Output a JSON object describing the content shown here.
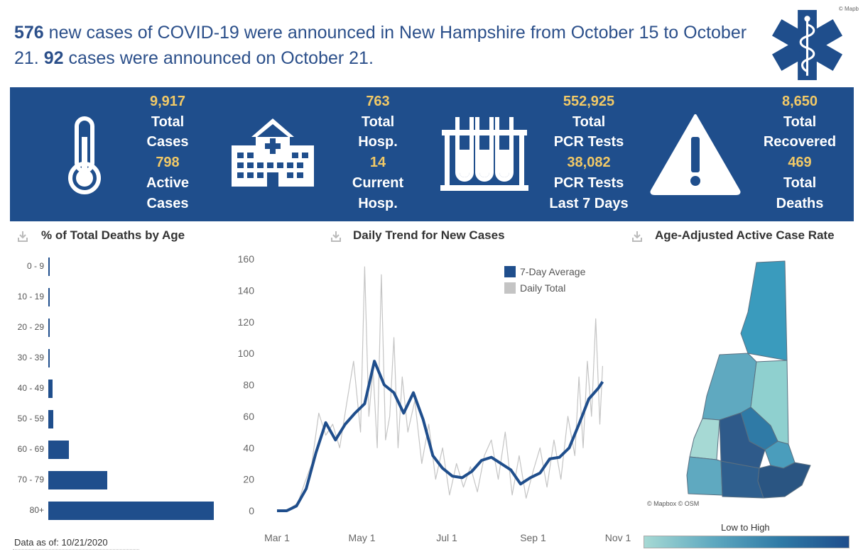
{
  "attribution": "© Mapb",
  "headline": {
    "new_cases": "576",
    "part1": " new cases of COVID-19 were announced in New Hampshire from October 15 to October 21. ",
    "day_cases": "92",
    "part2": " cases were announced on October 21."
  },
  "stats": {
    "cases": {
      "total_value": "9,917",
      "total_label_1": "Total",
      "total_label_2": "Cases",
      "active_value": "798",
      "active_label_1": "Active",
      "active_label_2": "Cases"
    },
    "hosp": {
      "total_value": "763",
      "total_label_1": "Total",
      "total_label_2": "Hosp.",
      "current_value": "14",
      "current_label_1": "Current",
      "current_label_2": "Hosp."
    },
    "tests": {
      "total_value": "552,925",
      "total_label_1": "Total",
      "total_label_2": "PCR Tests",
      "week_value": "38,082",
      "week_label_1": "PCR Tests",
      "week_label_2": "Last 7 Days"
    },
    "outcomes": {
      "recovered_value": "8,650",
      "recovered_label_1": "Total",
      "recovered_label_2": "Recovered",
      "deaths_value": "469",
      "deaths_label_1": "Total",
      "deaths_label_2": "Deaths"
    }
  },
  "icons": {
    "banner": [
      "thermometer-icon",
      "hospital-icon",
      "test-tubes-icon",
      "warning-icon"
    ],
    "logo": "star-of-life-icon",
    "download": "download-icon"
  },
  "colors": {
    "banner": "#1f4e8c",
    "stat_value": "#f1c967",
    "avg_line": "#1f4e8c",
    "daily_line": "#c4c4c4"
  },
  "panels": {
    "deaths_by_age": {
      "title": "% of Total Deaths by Age",
      "bars": [
        {
          "label": "0 - 9",
          "value": 0.2
        },
        {
          "label": "10 - 19",
          "value": 0.2
        },
        {
          "label": "20 - 29",
          "value": 0.2
        },
        {
          "label": "30 - 39",
          "value": 0.2
        },
        {
          "label": "40 - 49",
          "value": 1.1
        },
        {
          "label": "50 - 59",
          "value": 1.3
        },
        {
          "label": "60 - 69",
          "value": 5.6
        },
        {
          "label": "70 - 79",
          "value": 16.0
        },
        {
          "label": "80+",
          "value": 45.0
        }
      ]
    },
    "daily_trend": {
      "title": "Daily Trend for New Cases"
    },
    "map": {
      "title": "Age-Adjusted Active Case Rate",
      "credit": "© Mapbox © OSM",
      "legend_label": "Low to High"
    }
  },
  "footer": {
    "data_as_of": "Data as of: 10/21/2020"
  },
  "chart_data": {
    "type": "line",
    "title": "Daily Trend for New Cases",
    "xlabel": "",
    "ylabel": "",
    "ylim": [
      0,
      160
    ],
    "y_ticks": [
      "0",
      "20",
      "40",
      "60",
      "80",
      "100",
      "120",
      "140",
      "160"
    ],
    "x_ticks": [
      "Mar 1",
      "May 1",
      "Jul 1",
      "Sep 1",
      "Nov 1"
    ],
    "legend": {
      "placement": "top-right",
      "items": [
        "7-Day Average",
        "Daily Total"
      ]
    },
    "grid": false,
    "series": [
      {
        "name": "7-Day Average",
        "dates": [
          "2020-03-01",
          "2020-03-08",
          "2020-03-15",
          "2020-03-22",
          "2020-03-29",
          "2020-04-05",
          "2020-04-12",
          "2020-04-19",
          "2020-04-26",
          "2020-05-03",
          "2020-05-10",
          "2020-05-17",
          "2020-05-24",
          "2020-05-31",
          "2020-06-07",
          "2020-06-14",
          "2020-06-21",
          "2020-06-28",
          "2020-07-05",
          "2020-07-12",
          "2020-07-19",
          "2020-07-26",
          "2020-08-02",
          "2020-08-09",
          "2020-08-16",
          "2020-08-23",
          "2020-08-30",
          "2020-09-06",
          "2020-09-13",
          "2020-09-20",
          "2020-09-27",
          "2020-10-04",
          "2020-10-11",
          "2020-10-18",
          "2020-10-21"
        ],
        "values": [
          0,
          0,
          3,
          14,
          37,
          56,
          45,
          55,
          62,
          68,
          95,
          80,
          75,
          62,
          75,
          58,
          35,
          27,
          22,
          21,
          25,
          32,
          34,
          30,
          26,
          17,
          21,
          24,
          33,
          34,
          40,
          55,
          71,
          78,
          82
        ]
      },
      {
        "name": "Daily Total",
        "dates": [
          "2020-03-01",
          "2020-03-06",
          "2020-03-11",
          "2020-03-16",
          "2020-03-21",
          "2020-03-26",
          "2020-03-31",
          "2020-04-05",
          "2020-04-10",
          "2020-04-15",
          "2020-04-20",
          "2020-04-25",
          "2020-04-30",
          "2020-05-03",
          "2020-05-06",
          "2020-05-09",
          "2020-05-12",
          "2020-05-15",
          "2020-05-18",
          "2020-05-21",
          "2020-05-24",
          "2020-05-27",
          "2020-05-30",
          "2020-06-03",
          "2020-06-08",
          "2020-06-13",
          "2020-06-18",
          "2020-06-23",
          "2020-06-28",
          "2020-07-03",
          "2020-07-08",
          "2020-07-13",
          "2020-07-18",
          "2020-07-23",
          "2020-07-28",
          "2020-08-02",
          "2020-08-07",
          "2020-08-12",
          "2020-08-17",
          "2020-08-22",
          "2020-08-27",
          "2020-09-01",
          "2020-09-06",
          "2020-09-11",
          "2020-09-16",
          "2020-09-21",
          "2020-09-26",
          "2020-10-01",
          "2020-10-04",
          "2020-10-07",
          "2020-10-10",
          "2020-10-13",
          "2020-10-16",
          "2020-10-19",
          "2020-10-21"
        ],
        "values": [
          0,
          0,
          2,
          5,
          18,
          30,
          62,
          48,
          55,
          40,
          68,
          95,
          50,
          155,
          60,
          90,
          40,
          150,
          45,
          60,
          110,
          40,
          85,
          50,
          70,
          30,
          55,
          20,
          40,
          10,
          30,
          15,
          28,
          12,
          35,
          45,
          20,
          50,
          10,
          35,
          8,
          25,
          40,
          15,
          45,
          20,
          60,
          35,
          85,
          40,
          95,
          60,
          122,
          55,
          92
        ]
      }
    ]
  }
}
